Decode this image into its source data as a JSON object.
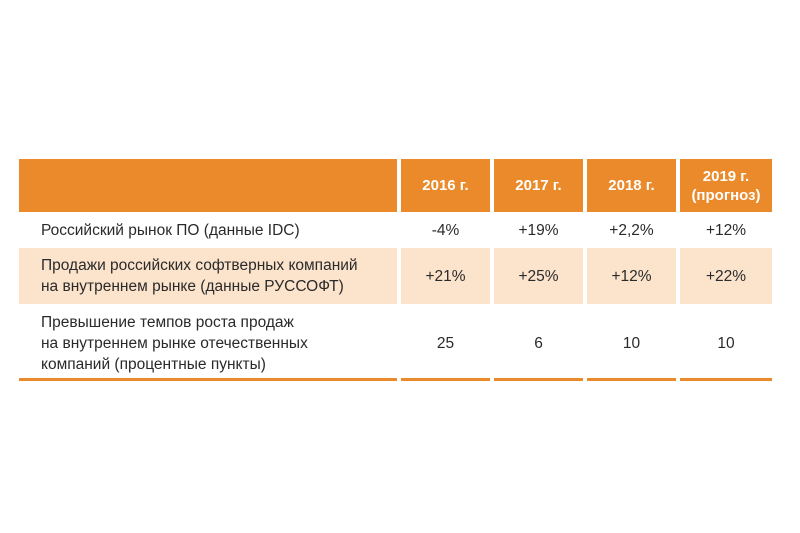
{
  "table": {
    "header": {
      "col0": "",
      "col1": "2016 г.",
      "col2": "2017 г.",
      "col3": "2018 г.",
      "col4_line1": "2019 г.",
      "col4_line2": "(прогноз)"
    },
    "rows": [
      {
        "label": "Российский рынок ПО (данные IDC)",
        "values": [
          "-4%",
          "+19%",
          "+2,2%",
          "+12%"
        ]
      },
      {
        "label": "Продажи российских софтверных компаний\nна внутреннем рынке (данные РУССОФТ)",
        "values": [
          "+21%",
          "+25%",
          "+12%",
          "+22%"
        ]
      },
      {
        "label": "Превышение темпов роста продаж\nна внутреннем рынке отечественных\nкомпаний (процентные пункты)",
        "values": [
          "25",
          "6",
          "10",
          "10"
        ]
      }
    ]
  },
  "colors": {
    "header_bg": "#ea8a2a",
    "header_text": "#ffffff",
    "alt_row_bg": "#fbe3cc",
    "rule": "#ea8a2a"
  }
}
